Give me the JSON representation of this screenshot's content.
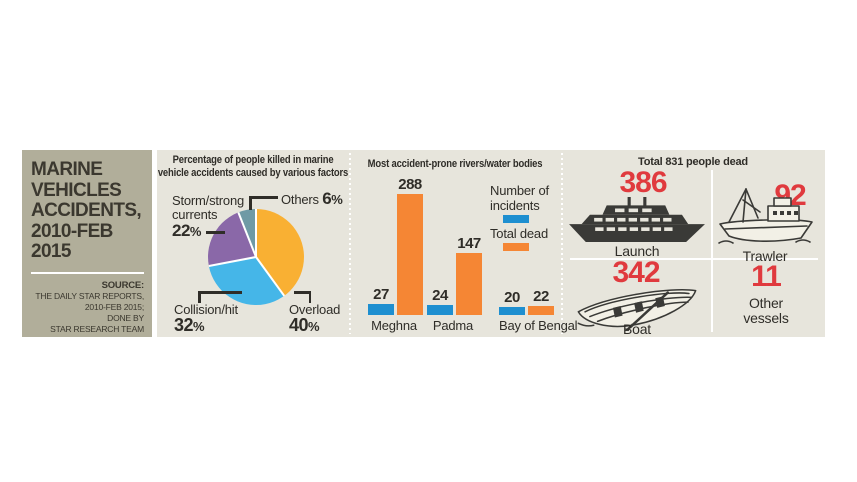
{
  "palette": {
    "left-bg": "#b1ae9a",
    "main-bg": "#e7e5dc",
    "ink": "#2f2d28",
    "accent": "#e03a3e",
    "icon": "#3a3a37"
  },
  "left_panel": {
    "title_lines": [
      "MARINE",
      "VEHICLES",
      "ACCIDENTS,",
      "2010-FEB",
      "2015"
    ],
    "source_label": "SOURCE:",
    "source_lines": [
      "THE DAILY STAR REPORTS,",
      "2010-FEB 2015;",
      "DONE BY",
      "STAR RESEARCH TEAM"
    ]
  },
  "chart_data": [
    {
      "type": "pie",
      "title": "Percentage of people killed in marine vehicle accidents caused by various factors",
      "slices": [
        {
          "label": "Overload",
          "value": 40,
          "color": "#f9b033"
        },
        {
          "label": "Collision/hit",
          "value": 32,
          "color": "#45b6e8"
        },
        {
          "label": "Storm/strong currents",
          "value": 22,
          "color": "#8a68a8"
        },
        {
          "label": "Others",
          "value": 6,
          "color": "#6f9aa5"
        }
      ],
      "start_angle_deg": 0,
      "direction": "clockwise",
      "legend_position": "callout-labels"
    },
    {
      "type": "bar",
      "title": "Most accident-prone rivers/water bodies",
      "categories": [
        "Meghna",
        "Padma",
        "Bay of Bengal"
      ],
      "series": [
        {
          "name": "Number of incidents",
          "color": "#1e8fd0",
          "values": [
            27,
            24,
            20
          ]
        },
        {
          "name": "Total dead",
          "color": "#f58634",
          "values": [
            288,
            147,
            22
          ]
        }
      ],
      "ylim": [
        0,
        288
      ],
      "grid": false,
      "legend_position": "right"
    }
  ],
  "pie_section": {
    "title_line1": "Percentage of people killed in marine",
    "title_line2": "vehicle accidents caused by various factors",
    "labels": {
      "storm": {
        "line1": "Storm/strong",
        "line2": "currents",
        "pct": "22",
        "pct_sign": "%"
      },
      "others": {
        "name": "Others",
        "pct": "6",
        "pct_sign": "%"
      },
      "collision": {
        "name": "Collision/hit",
        "pct": "32",
        "pct_sign": "%"
      },
      "overload": {
        "name": "Overload",
        "pct": "40",
        "pct_sign": "%"
      }
    }
  },
  "bar_section": {
    "title": "Most accident-prone rivers/water bodies"
  },
  "vessels_section": {
    "title": "Total 831 people dead",
    "accent": "#e03a3e",
    "items": [
      {
        "name": "Launch",
        "value": "386"
      },
      {
        "name": "Trawler",
        "value": "92"
      },
      {
        "name": "Boat",
        "value": "342"
      },
      {
        "name": "Other vessels",
        "value": "11"
      }
    ]
  }
}
